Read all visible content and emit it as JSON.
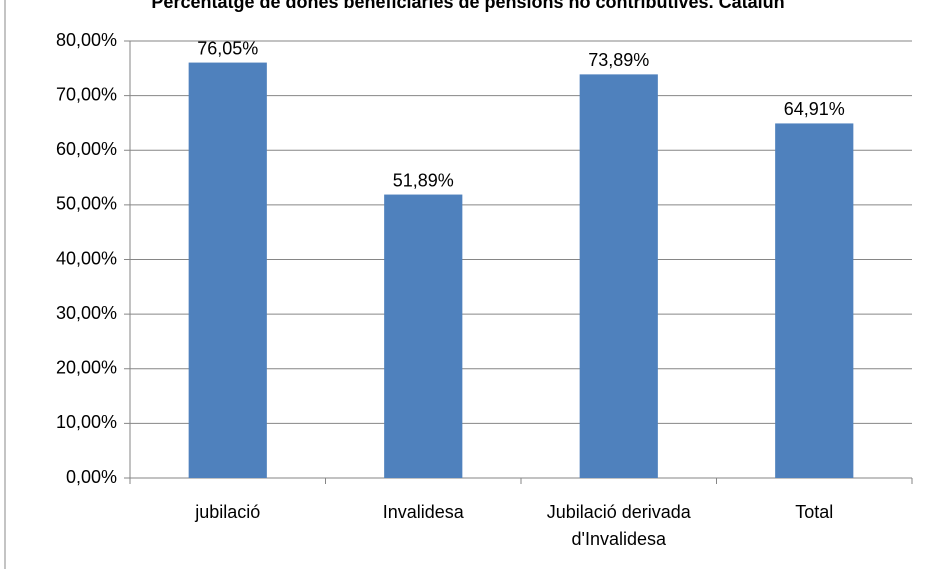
{
  "chart_data": {
    "type": "bar",
    "title": "Percentatge de dones beneficiaries de pensions no contributives. Catalun",
    "categories": [
      "jubilació",
      "Invalidesa",
      "Jubilació derivada d'Invalidesa",
      "Total"
    ],
    "values": [
      76.05,
      51.89,
      73.89,
      64.91
    ],
    "value_labels": [
      "76,05%",
      "51,89%",
      "73,89%",
      "64,91%"
    ],
    "color": "#4f81bd",
    "ylim": [
      0,
      80
    ],
    "yticks": [
      {
        "value": 0,
        "label": "0,00%"
      },
      {
        "value": 10,
        "label": "10,00%"
      },
      {
        "value": 20,
        "label": "20,00%"
      },
      {
        "value": 30,
        "label": "30,00%"
      },
      {
        "value": 40,
        "label": "40,00%"
      },
      {
        "value": 50,
        "label": "50,00%"
      },
      {
        "value": 60,
        "label": "60,00%"
      },
      {
        "value": 70,
        "label": "70,00%"
      },
      {
        "value": 80,
        "label": "80,00%"
      }
    ],
    "grid": true
  }
}
